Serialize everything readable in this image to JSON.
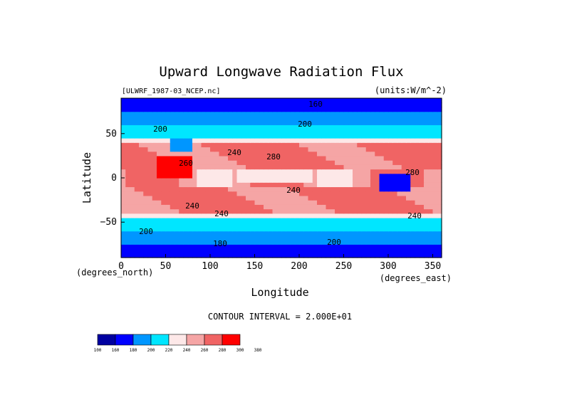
{
  "chart_data": {
    "type": "heatmap",
    "title": "Upward Longwave Radiation Flux",
    "source_label": "[ULWRF_1987-03_NCEP.nc]",
    "units_label": "(units:W/m^-2)",
    "xlabel": "Longitude",
    "ylabel": "Latitude",
    "x_unit_label": "(degrees_east)",
    "y_unit_label": "(degrees_north)",
    "xlim": [
      0,
      360
    ],
    "ylim": [
      -90,
      90
    ],
    "x_ticks": [
      "0",
      "50",
      "100",
      "150",
      "200",
      "250",
      "300",
      "350"
    ],
    "y_ticks": [
      "50",
      "0",
      "−50"
    ],
    "contour_interval_label": "CONTOUR INTERVAL = 2.000E+01",
    "contour_labels": [
      "160",
      "200",
      "200",
      "240",
      "280",
      "260",
      "280",
      "240",
      "240",
      "240",
      "240",
      "200",
      "200",
      "180"
    ],
    "colorbar": {
      "ticks": [
        "100",
        "160",
        "180",
        "200",
        "220",
        "240",
        "260",
        "280",
        "300",
        "380"
      ],
      "colors": [
        "#0000a0",
        "#0000ff",
        "#0096ff",
        "#00e6ff",
        "#fde8e8",
        "#f5a5a5",
        "#f06464",
        "#ff0000"
      ]
    }
  }
}
